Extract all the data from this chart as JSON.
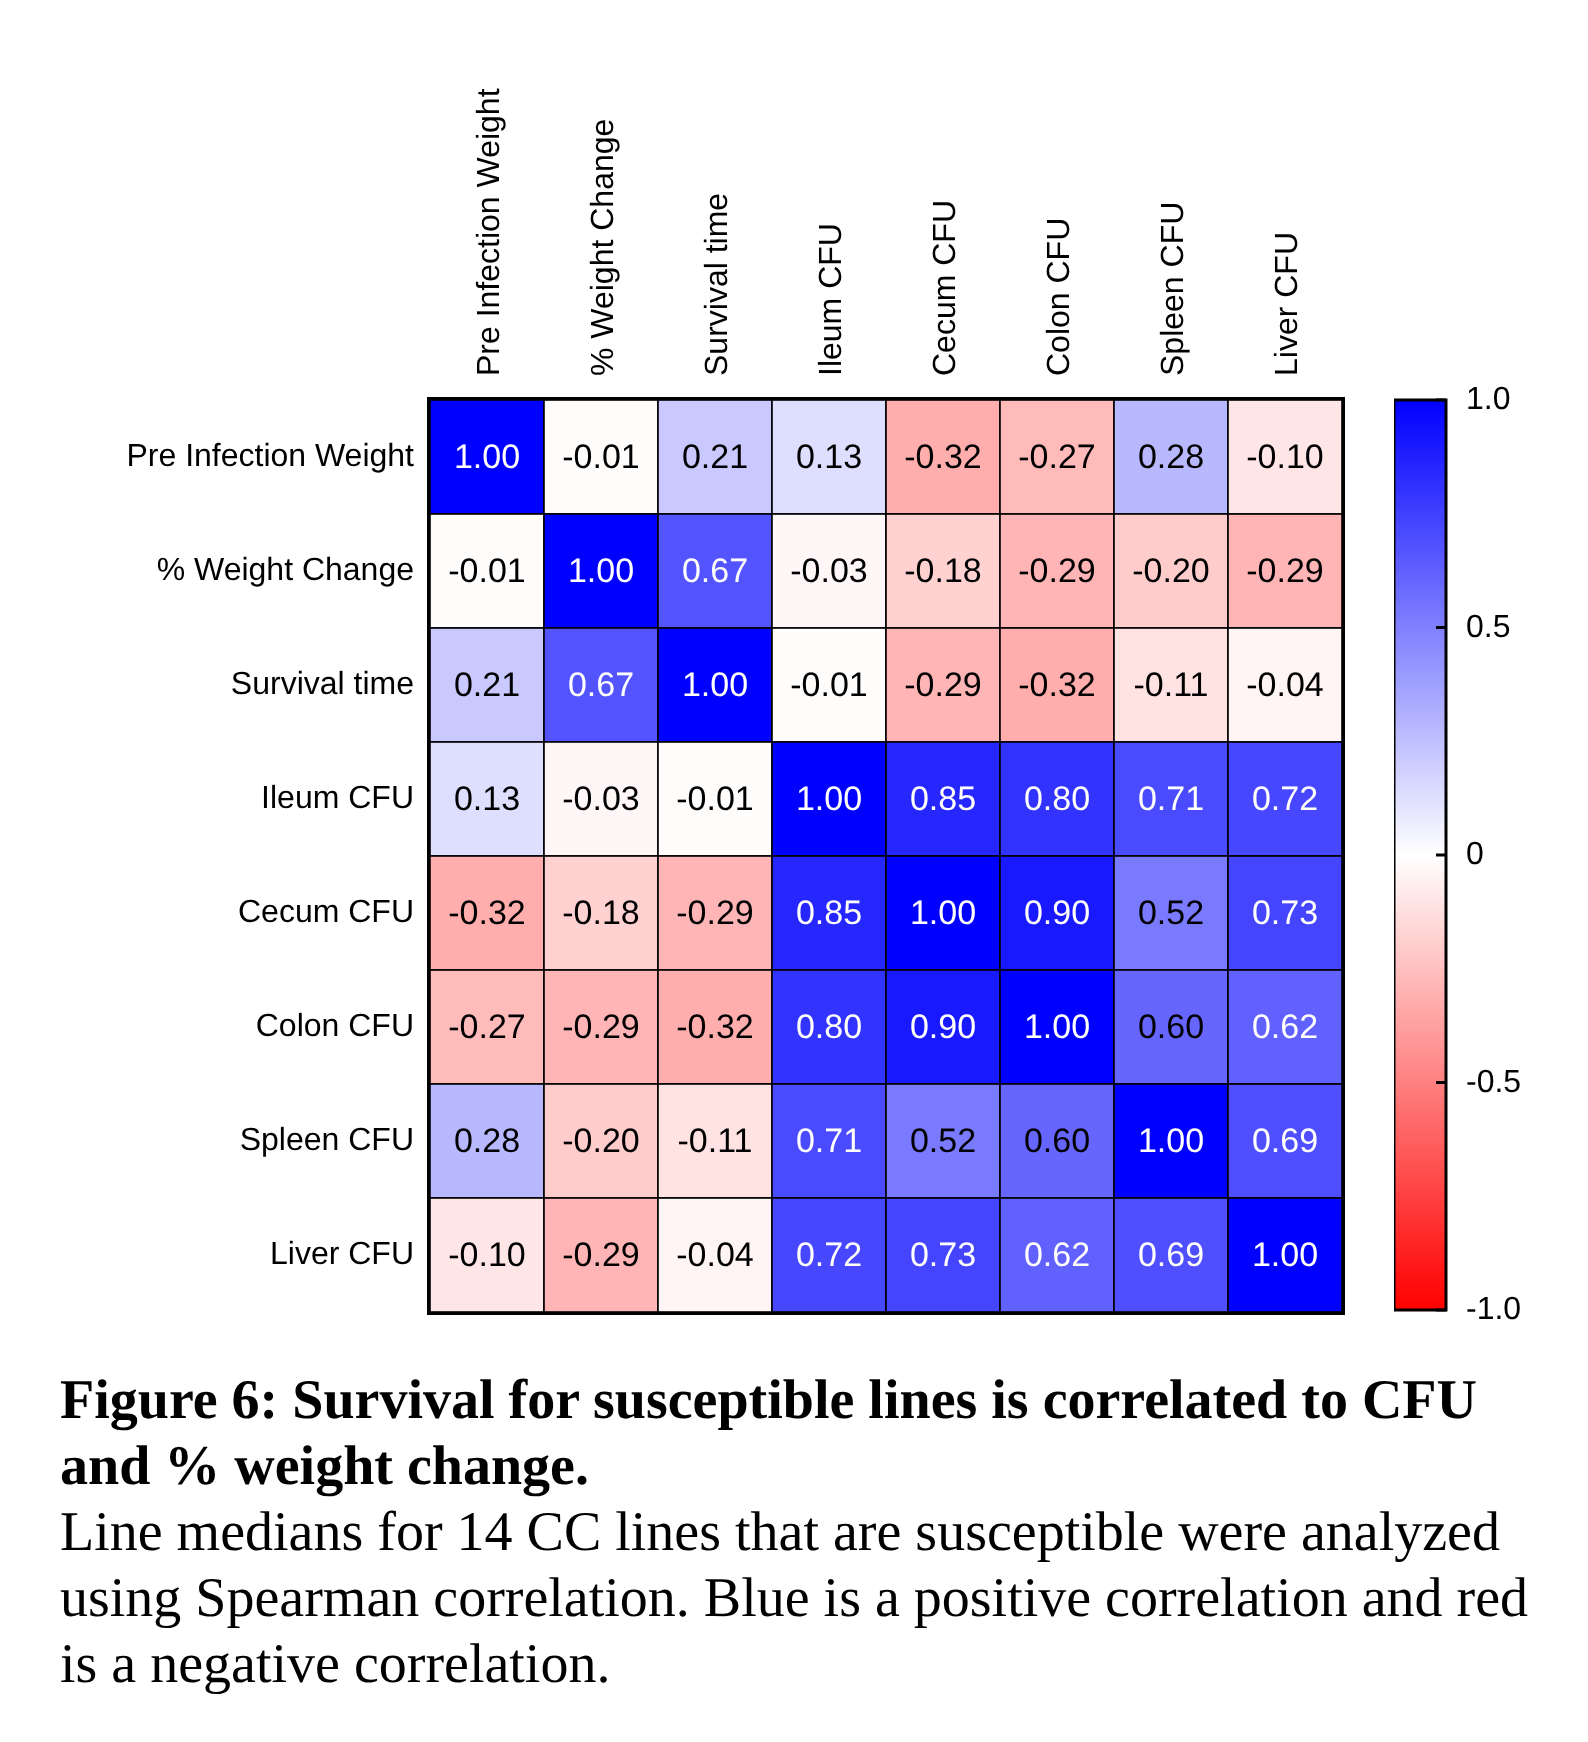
{
  "chart_data": {
    "type": "heatmap",
    "title": "Figure 6: Survival for susceptible lines is correlated to CFU and % weight change.",
    "annotations": [
      "Line medians for 14 CC lines that are susceptible were analyzed using Spearman correlation. Blue is a positive correlation and red is a negative correlation."
    ],
    "categories": [
      "Pre Infection Weight",
      "% Weight Change",
      "Survival time",
      "Ileum CFU",
      "Cecum CFU",
      "Colon CFU",
      "Spleen CFU",
      "Liver CFU"
    ],
    "y_categories": [
      "Pre Infection Weight",
      "% Weight Change",
      "Survival time",
      "Ileum CFU",
      "Cecum CFU",
      "Colon CFU",
      "Spleen CFU",
      "Liver CFU"
    ],
    "cells": [
      [
        1.0,
        -0.01,
        0.21,
        0.13,
        -0.32,
        -0.27,
        0.28,
        -0.1
      ],
      [
        -0.01,
        1.0,
        0.67,
        -0.03,
        -0.18,
        -0.29,
        -0.2,
        -0.29
      ],
      [
        0.21,
        0.67,
        1.0,
        -0.01,
        -0.29,
        -0.32,
        -0.11,
        -0.04
      ],
      [
        0.13,
        -0.03,
        -0.01,
        1.0,
        0.85,
        0.8,
        0.71,
        0.72
      ],
      [
        -0.32,
        -0.18,
        -0.29,
        0.85,
        1.0,
        0.9,
        0.52,
        0.73
      ],
      [
        -0.27,
        -0.29,
        -0.32,
        0.8,
        0.9,
        1.0,
        0.6,
        0.62
      ],
      [
        0.28,
        -0.2,
        -0.11,
        0.71,
        0.52,
        0.6,
        1.0,
        0.69
      ],
      [
        -0.1,
        -0.29,
        -0.04,
        0.72,
        0.73,
        0.62,
        0.69,
        1.0
      ]
    ],
    "cell_labels": [
      [
        "1.00",
        "-0.01",
        "0.21",
        "0.13",
        "-0.32",
        "-0.27",
        "0.28",
        "-0.10"
      ],
      [
        "-0.01",
        "1.00",
        "0.67",
        "-0.03",
        "-0.18",
        "-0.29",
        "-0.20",
        "-0.29"
      ],
      [
        "0.21",
        "0.67",
        "1.00",
        "-0.01",
        "-0.29",
        "-0.32",
        "-0.11",
        "-0.04"
      ],
      [
        "0.13",
        "-0.03",
        "-0.01",
        "1.00",
        "0.85",
        "0.80",
        "0.71",
        "0.72"
      ],
      [
        "-0.32",
        "-0.18",
        "-0.29",
        "0.85",
        "1.00",
        "0.90",
        "0.52",
        "0.73"
      ],
      [
        "-0.27",
        "-0.29",
        "-0.32",
        "0.80",
        "0.90",
        "1.00",
        "0.60",
        "0.62"
      ],
      [
        "0.28",
        "-0.20",
        "-0.11",
        "0.71",
        "0.52",
        "0.60",
        "1.00",
        "0.69"
      ],
      [
        "-0.10",
        "-0.29",
        "-0.04",
        "0.72",
        "0.73",
        "0.62",
        "0.69",
        "1.00"
      ]
    ],
    "clim": [
      -1.0,
      1.0
    ],
    "cticks": [
      {
        "value": 1,
        "label": "1.0"
      },
      {
        "value": 0.5,
        "label": "0.5"
      },
      {
        "value": 0,
        "label": "0"
      },
      {
        "value": -0.5,
        "label": "-0.5"
      },
      {
        "value": -1,
        "label": "-1.0"
      }
    ]
  }
}
